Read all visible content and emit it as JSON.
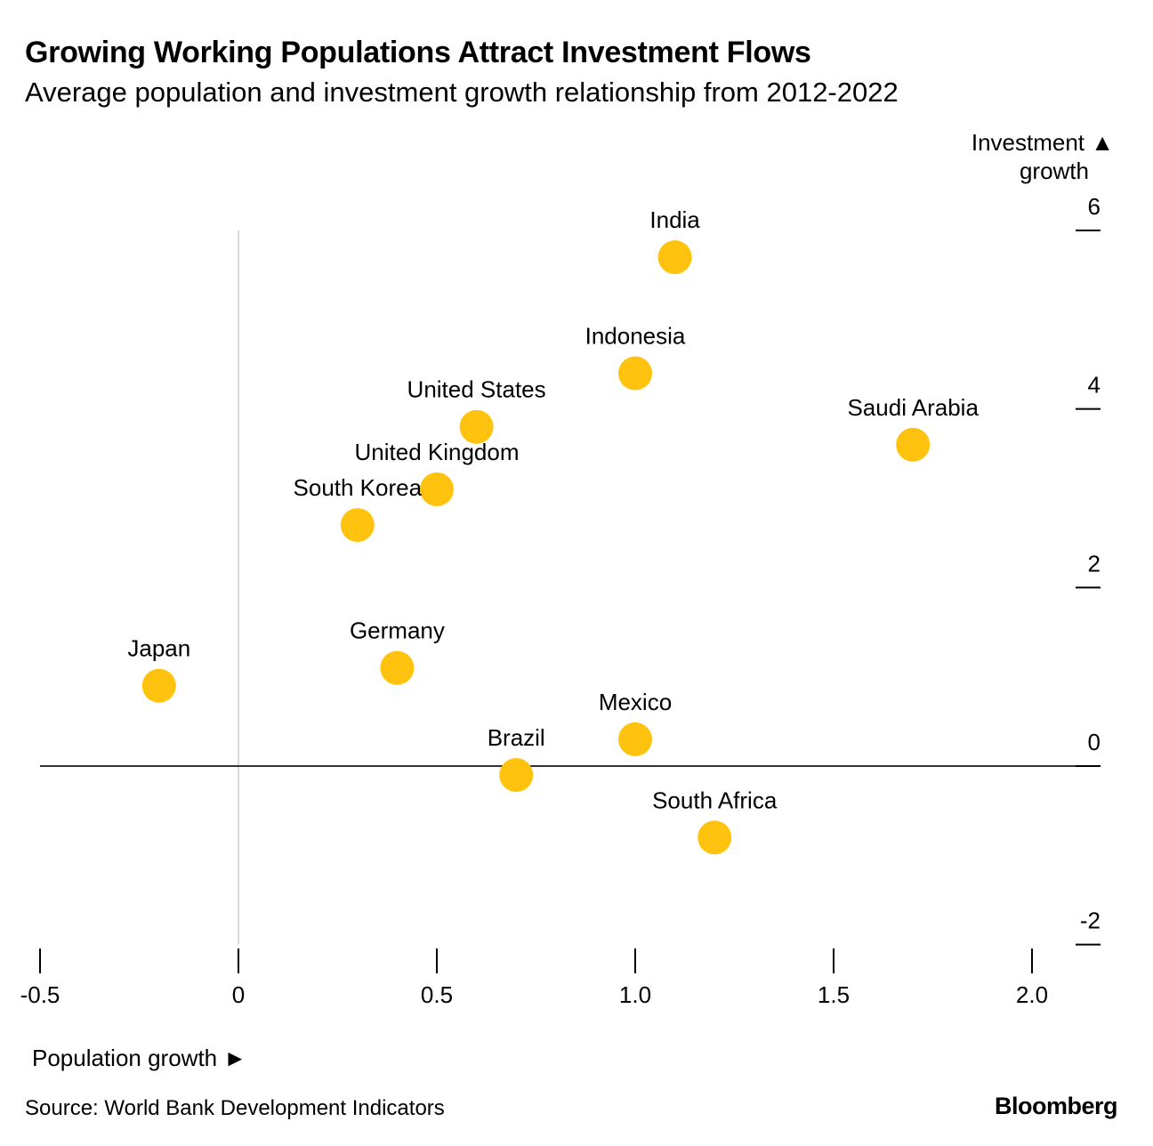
{
  "header": {
    "title": "Growing Working Populations Attract Investment Flows",
    "subtitle": "Average population and investment growth relationship from 2012-2022"
  },
  "footer": {
    "source": "Source: World Bank Development Indicators",
    "brand": "Bloomberg"
  },
  "colors": {
    "point": "#FFC20E",
    "zero_line": "#333333",
    "x_zero_line": "#D9D9D9",
    "tick": "#000000"
  },
  "chart_data": {
    "type": "scatter",
    "title": "Growing Working Populations Attract Investment Flows",
    "subtitle": "Average population and investment growth relationship from 2012-2022",
    "xlabel": "Population growth ►",
    "ylabel_line1": "Investment ▲",
    "ylabel_line2": "growth",
    "xlim": [
      -0.5,
      2.2
    ],
    "ylim": [
      -2,
      6
    ],
    "x_ticks": [
      {
        "value": -0.5,
        "label": "-0.5"
      },
      {
        "value": 0,
        "label": "0"
      },
      {
        "value": 0.5,
        "label": "0.5"
      },
      {
        "value": 1.0,
        "label": "1.0"
      },
      {
        "value": 1.5,
        "label": "1.5"
      },
      {
        "value": 2.0,
        "label": "2.0"
      }
    ],
    "y_ticks": [
      {
        "value": 6,
        "label": "6"
      },
      {
        "value": 4,
        "label": "4"
      },
      {
        "value": 2,
        "label": "2"
      },
      {
        "value": 0,
        "label": "0"
      },
      {
        "value": -2,
        "label": "-2"
      }
    ],
    "points": [
      {
        "label": "India",
        "x": 1.1,
        "y": 5.7
      },
      {
        "label": "Indonesia",
        "x": 1.0,
        "y": 4.4
      },
      {
        "label": "United States",
        "x": 0.6,
        "y": 3.8
      },
      {
        "label": "Saudi Arabia",
        "x": 1.7,
        "y": 3.6
      },
      {
        "label": "United Kingdom",
        "x": 0.5,
        "y": 3.1
      },
      {
        "label": "South Korea",
        "x": 0.3,
        "y": 2.7
      },
      {
        "label": "Germany",
        "x": 0.4,
        "y": 1.1
      },
      {
        "label": "Japan",
        "x": -0.2,
        "y": 0.9
      },
      {
        "label": "Mexico",
        "x": 1.0,
        "y": 0.3
      },
      {
        "label": "Brazil",
        "x": 0.7,
        "y": -0.1
      },
      {
        "label": "South Africa",
        "x": 1.2,
        "y": -0.8
      }
    ],
    "source": "Source: World Bank Development Indicators"
  }
}
